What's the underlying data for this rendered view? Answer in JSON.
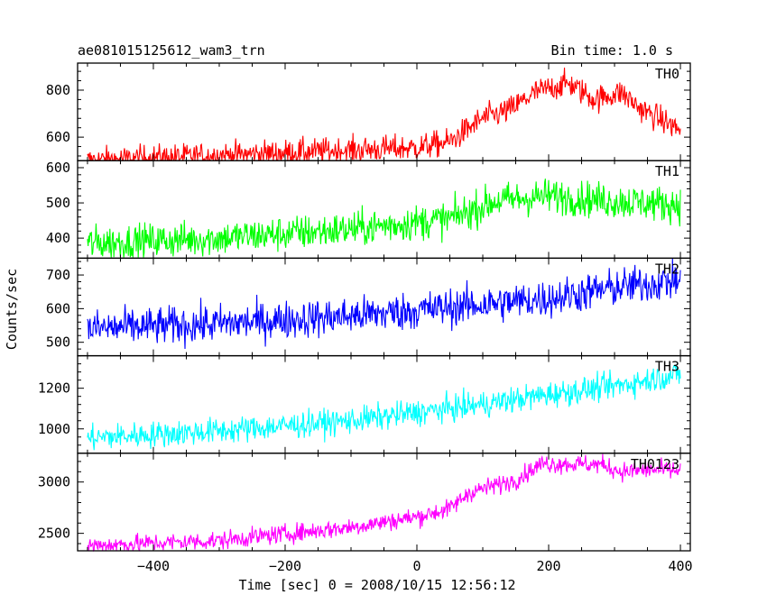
{
  "header": {
    "file_name": "ae081015125612_wam3_trn",
    "bin_time": "Bin time: 1.0 s"
  },
  "ylabel": "Counts/sec",
  "xlabel": "Time [sec] 0 = 2008/10/15 12:56:12",
  "chart_data": {
    "type": "line",
    "xlim": [
      -515,
      415
    ],
    "x_range": [
      -500,
      400
    ],
    "x_step": 1,
    "xticks": [
      -400,
      -200,
      0,
      200,
      400
    ],
    "xtick_labels": [
      "−400",
      "−200",
      "0",
      "200",
      "400"
    ],
    "panels": [
      {
        "name": "TH0",
        "color": "#ff0000",
        "ylim": [
          500,
          915
        ],
        "yticks": [
          600,
          800
        ],
        "ytick_labels": [
          "600",
          "800"
        ],
        "trend": [
          [
            -500,
            500
          ],
          [
            -100,
            545
          ],
          [
            0,
            555
          ],
          [
            50,
            580
          ],
          [
            100,
            680
          ],
          [
            140,
            715
          ],
          [
            180,
            790
          ],
          [
            230,
            830
          ],
          [
            270,
            760
          ],
          [
            310,
            790
          ],
          [
            340,
            720
          ],
          [
            400,
            630
          ]
        ],
        "noise": 28
      },
      {
        "name": "TH1",
        "color": "#00ff00",
        "ylim": [
          343,
          620
        ],
        "yticks": [
          400,
          500,
          600
        ],
        "ytick_labels": [
          "400",
          "500",
          "600"
        ],
        "trend": [
          [
            -500,
            385
          ],
          [
            -300,
            400
          ],
          [
            -100,
            425
          ],
          [
            50,
            455
          ],
          [
            120,
            505
          ],
          [
            200,
            520
          ],
          [
            300,
            505
          ],
          [
            400,
            495
          ]
        ],
        "noise": 25
      },
      {
        "name": "TH2",
        "color": "#0000ff",
        "ylim": [
          460,
          750
        ],
        "yticks": [
          500,
          600,
          700
        ],
        "ytick_labels": [
          "500",
          "600",
          "700"
        ],
        "trend": [
          [
            -500,
            540
          ],
          [
            -300,
            555
          ],
          [
            -100,
            578
          ],
          [
            100,
            612
          ],
          [
            200,
            630
          ],
          [
            300,
            662
          ],
          [
            400,
            685
          ]
        ],
        "noise": 28
      },
      {
        "name": "TH3",
        "color": "#00ffff",
        "ylim": [
          880,
          1360
        ],
        "yticks": [
          1000,
          1200
        ],
        "ytick_labels": [
          "1000",
          "1200"
        ],
        "trend": [
          [
            -500,
            955
          ],
          [
            -300,
            990
          ],
          [
            -100,
            1040
          ],
          [
            100,
            1120
          ],
          [
            200,
            1170
          ],
          [
            300,
            1210
          ],
          [
            400,
            1270
          ]
        ],
        "noise": 32
      },
      {
        "name": "TH0123",
        "color": "#ff00ff",
        "ylim": [
          2330,
          3280
        ],
        "yticks": [
          2500,
          3000
        ],
        "ytick_labels": [
          "2500",
          "3000"
        ],
        "trend": [
          [
            -500,
            2380
          ],
          [
            -300,
            2430
          ],
          [
            -100,
            2560
          ],
          [
            0,
            2660
          ],
          [
            50,
            2740
          ],
          [
            80,
            2900
          ],
          [
            150,
            3020
          ],
          [
            190,
            3180
          ],
          [
            280,
            3170
          ],
          [
            310,
            3100
          ],
          [
            350,
            3120
          ],
          [
            400,
            3110
          ]
        ],
        "noise": 45
      }
    ]
  }
}
